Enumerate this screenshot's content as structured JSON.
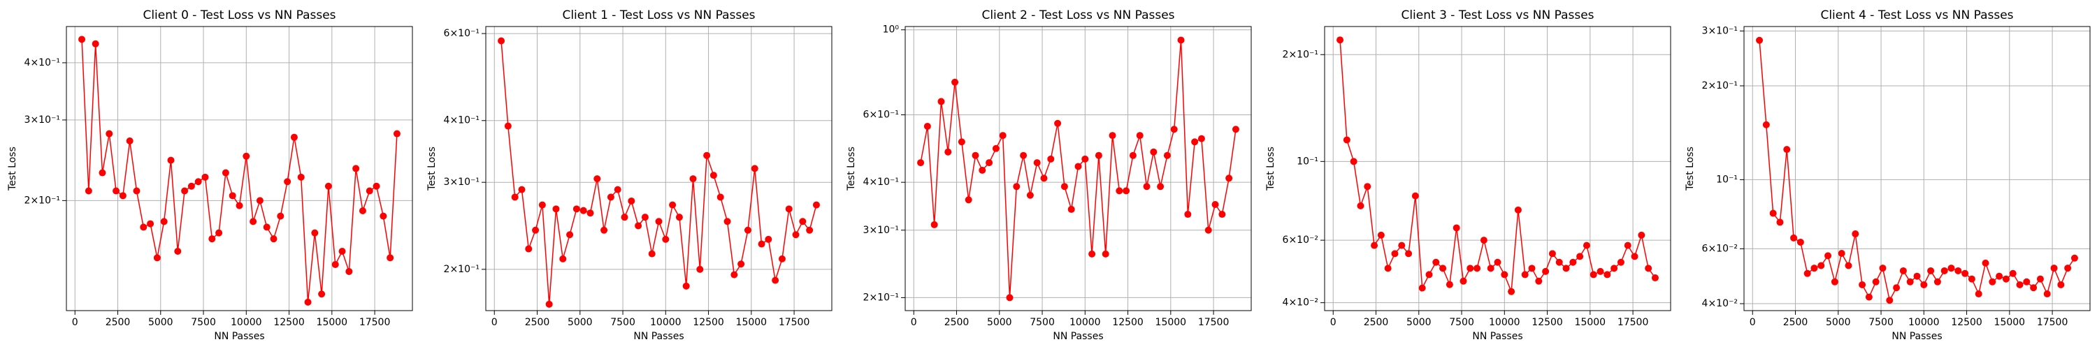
{
  "chart_data": [
    {
      "type": "line",
      "title": "Client 0 - Test Loss vs NN Passes",
      "xlabel": "NN Passes",
      "ylabel": "Test Loss",
      "log_y": true,
      "grid": true,
      "x": [
        400,
        800,
        1200,
        1600,
        2000,
        2400,
        2800,
        3200,
        3600,
        4000,
        4400,
        4800,
        5200,
        5600,
        6000,
        6400,
        6800,
        7200,
        7600,
        8000,
        8400,
        8800,
        9200,
        9600,
        10000,
        10400,
        10800,
        11200,
        11600,
        12000,
        12400,
        12800,
        13200,
        13600,
        14000,
        14400,
        14800,
        15200,
        15600,
        16000,
        16400,
        16800,
        17200,
        17600,
        18000,
        18400,
        18800
      ],
      "series": [
        {
          "name": "Test Loss",
          "color": "#ff0000",
          "values": [
            0.45,
            0.21,
            0.44,
            0.23,
            0.28,
            0.21,
            0.205,
            0.27,
            0.21,
            0.175,
            0.178,
            0.15,
            0.18,
            0.245,
            0.155,
            0.21,
            0.215,
            0.22,
            0.225,
            0.165,
            0.17,
            0.23,
            0.205,
            0.195,
            0.25,
            0.18,
            0.2,
            0.175,
            0.165,
            0.185,
            0.22,
            0.275,
            0.225,
            0.12,
            0.17,
            0.125,
            0.215,
            0.145,
            0.155,
            0.14,
            0.235,
            0.19,
            0.21,
            0.215,
            0.185,
            0.15,
            0.28
          ]
        }
      ],
      "xlim": [
        -500,
        19700
      ],
      "xticks": [
        0,
        2500,
        5000,
        7500,
        10000,
        12500,
        15000,
        17500
      ],
      "ylim": [
        0.115,
        0.48
      ],
      "yticks": [
        {
          "value": 0.2,
          "label": "2×10⁻¹"
        },
        {
          "value": 0.3,
          "label": "3×10⁻¹"
        },
        {
          "value": 0.4,
          "label": "4×10⁻¹"
        }
      ]
    },
    {
      "type": "line",
      "title": "Client 1 - Test Loss vs NN Passes",
      "xlabel": "NN Passes",
      "ylabel": "Test Loss",
      "log_y": true,
      "grid": true,
      "x": [
        400,
        800,
        1200,
        1600,
        2000,
        2400,
        2800,
        3200,
        3600,
        4000,
        4400,
        4800,
        5200,
        5600,
        6000,
        6400,
        6800,
        7200,
        7600,
        8000,
        8400,
        8800,
        9200,
        9600,
        10000,
        10400,
        10800,
        11200,
        11600,
        12000,
        12400,
        12800,
        13200,
        13600,
        14000,
        14400,
        14800,
        15200,
        15600,
        16000,
        16400,
        16800,
        17200,
        17600,
        18000,
        18400,
        18800
      ],
      "series": [
        {
          "name": "Test Loss",
          "color": "#ff0000",
          "values": [
            0.58,
            0.39,
            0.28,
            0.29,
            0.22,
            0.24,
            0.27,
            0.17,
            0.265,
            0.21,
            0.235,
            0.265,
            0.263,
            0.26,
            0.305,
            0.24,
            0.28,
            0.29,
            0.255,
            0.275,
            0.245,
            0.255,
            0.215,
            0.25,
            0.23,
            0.27,
            0.255,
            0.185,
            0.305,
            0.2,
            0.34,
            0.31,
            0.28,
            0.25,
            0.195,
            0.205,
            0.24,
            0.32,
            0.225,
            0.23,
            0.19,
            0.21,
            0.265,
            0.235,
            0.25,
            0.24,
            0.27
          ]
        }
      ],
      "xlim": [
        -500,
        19700
      ],
      "xticks": [
        0,
        2500,
        5000,
        7500,
        10000,
        12500,
        15000,
        17500
      ],
      "ylim": [
        0.165,
        0.62
      ],
      "yticks": [
        {
          "value": 0.2,
          "label": "2×10⁻¹"
        },
        {
          "value": 0.3,
          "label": "3×10⁻¹"
        },
        {
          "value": 0.4,
          "label": "4×10⁻¹"
        },
        {
          "value": 0.6,
          "label": "6×10⁻¹"
        }
      ]
    },
    {
      "type": "line",
      "title": "Client 2 - Test Loss vs NN Passes",
      "xlabel": "NN Passes",
      "ylabel": "Test Loss",
      "log_y": true,
      "grid": true,
      "x": [
        400,
        800,
        1200,
        1600,
        2000,
        2400,
        2800,
        3200,
        3600,
        4000,
        4400,
        4800,
        5200,
        5600,
        6000,
        6400,
        6800,
        7200,
        7600,
        8000,
        8400,
        8800,
        9200,
        9600,
        10000,
        10400,
        10800,
        11200,
        11600,
        12000,
        12400,
        12800,
        13200,
        13600,
        14000,
        14400,
        14800,
        15200,
        15600,
        16000,
        16400,
        16800,
        17200,
        17600,
        18000,
        18400,
        18800
      ],
      "series": [
        {
          "name": "Test Loss",
          "color": "#ff0000",
          "values": [
            0.45,
            0.56,
            0.31,
            0.65,
            0.48,
            0.73,
            0.51,
            0.36,
            0.47,
            0.43,
            0.45,
            0.49,
            0.53,
            0.2,
            0.39,
            0.47,
            0.37,
            0.45,
            0.41,
            0.46,
            0.57,
            0.39,
            0.34,
            0.44,
            0.46,
            0.26,
            0.47,
            0.26,
            0.53,
            0.38,
            0.38,
            0.47,
            0.53,
            0.39,
            0.48,
            0.39,
            0.47,
            0.55,
            0.94,
            0.33,
            0.51,
            0.52,
            0.3,
            0.35,
            0.33,
            0.41,
            0.55
          ]
        }
      ],
      "xlim": [
        -500,
        19700
      ],
      "xticks": [
        0,
        2500,
        5000,
        7500,
        10000,
        12500,
        15000,
        17500
      ],
      "ylim": [
        0.185,
        1.02
      ],
      "yticks": [
        {
          "value": 0.2,
          "label": "2×10⁻¹"
        },
        {
          "value": 0.3,
          "label": "3×10⁻¹"
        },
        {
          "value": 0.4,
          "label": "4×10⁻¹"
        },
        {
          "value": 0.6,
          "label": "6×10⁻¹"
        },
        {
          "value": 1,
          "label": "10⁰"
        }
      ]
    },
    {
      "type": "line",
      "title": "Client 3 - Test Loss vs NN Passes",
      "xlabel": "NN Passes",
      "ylabel": "Test Loss",
      "log_y": true,
      "grid": true,
      "x": [
        400,
        800,
        1200,
        1600,
        2000,
        2400,
        2800,
        3200,
        3600,
        4000,
        4400,
        4800,
        5200,
        5600,
        6000,
        6400,
        6800,
        7200,
        7600,
        8000,
        8400,
        8800,
        9200,
        9600,
        10000,
        10400,
        10800,
        11200,
        11600,
        12000,
        12400,
        12800,
        13200,
        13600,
        14000,
        14400,
        14800,
        15200,
        15600,
        16000,
        16400,
        16800,
        17200,
        17600,
        18000,
        18400,
        18800
      ],
      "series": [
        {
          "name": "Test Loss",
          "color": "#ff0000",
          "values": [
            0.22,
            0.115,
            0.1,
            0.075,
            0.085,
            0.058,
            0.062,
            0.05,
            0.055,
            0.058,
            0.055,
            0.08,
            0.044,
            0.048,
            0.052,
            0.05,
            0.045,
            0.065,
            0.046,
            0.05,
            0.05,
            0.06,
            0.05,
            0.052,
            0.048,
            0.043,
            0.073,
            0.048,
            0.05,
            0.046,
            0.049,
            0.055,
            0.052,
            0.05,
            0.052,
            0.054,
            0.058,
            0.048,
            0.049,
            0.048,
            0.05,
            0.052,
            0.058,
            0.054,
            0.062,
            0.05,
            0.047
          ]
        }
      ],
      "xlim": [
        -500,
        19700
      ],
      "xticks": [
        0,
        2500,
        5000,
        7500,
        10000,
        12500,
        15000,
        17500
      ],
      "ylim": [
        0.038,
        0.24
      ],
      "yticks": [
        {
          "value": 0.04,
          "label": "4×10⁻²"
        },
        {
          "value": 0.06,
          "label": "6×10⁻²"
        },
        {
          "value": 0.1,
          "label": "10⁻¹"
        },
        {
          "value": 0.2,
          "label": "2×10⁻¹"
        }
      ]
    },
    {
      "type": "line",
      "title": "Client 4 - Test Loss vs NN Passes",
      "xlabel": "NN Passes",
      "ylabel": "Test Loss",
      "log_y": true,
      "grid": true,
      "x": [
        400,
        800,
        1200,
        1600,
        2000,
        2400,
        2800,
        3200,
        3600,
        4000,
        4400,
        4800,
        5200,
        5600,
        6000,
        6400,
        6800,
        7200,
        7600,
        8000,
        8400,
        8800,
        9200,
        9600,
        10000,
        10400,
        10800,
        11200,
        11600,
        12000,
        12400,
        12800,
        13200,
        13600,
        14000,
        14400,
        14800,
        15200,
        15600,
        16000,
        16400,
        16800,
        17200,
        17600,
        18000,
        18400,
        18800
      ],
      "series": [
        {
          "name": "Test Loss",
          "color": "#ff0000",
          "values": [
            0.28,
            0.15,
            0.078,
            0.073,
            0.125,
            0.065,
            0.063,
            0.05,
            0.052,
            0.053,
            0.057,
            0.047,
            0.058,
            0.053,
            0.067,
            0.046,
            0.042,
            0.047,
            0.052,
            0.041,
            0.045,
            0.051,
            0.047,
            0.049,
            0.046,
            0.051,
            0.047,
            0.051,
            0.052,
            0.051,
            0.05,
            0.048,
            0.043,
            0.054,
            0.047,
            0.049,
            0.048,
            0.05,
            0.046,
            0.047,
            0.045,
            0.048,
            0.043,
            0.052,
            0.046,
            0.052,
            0.056
          ]
        }
      ],
      "xlim": [
        -500,
        19700
      ],
      "xticks": [
        0,
        2500,
        5000,
        7500,
        10000,
        12500,
        15000,
        17500
      ],
      "ylim": [
        0.038,
        0.31
      ],
      "yticks": [
        {
          "value": 0.04,
          "label": "4×10⁻²"
        },
        {
          "value": 0.06,
          "label": "6×10⁻²"
        },
        {
          "value": 0.1,
          "label": "10⁻¹"
        },
        {
          "value": 0.2,
          "label": "2×10⁻¹"
        },
        {
          "value": 0.3,
          "label": "3×10⁻¹"
        }
      ]
    }
  ]
}
